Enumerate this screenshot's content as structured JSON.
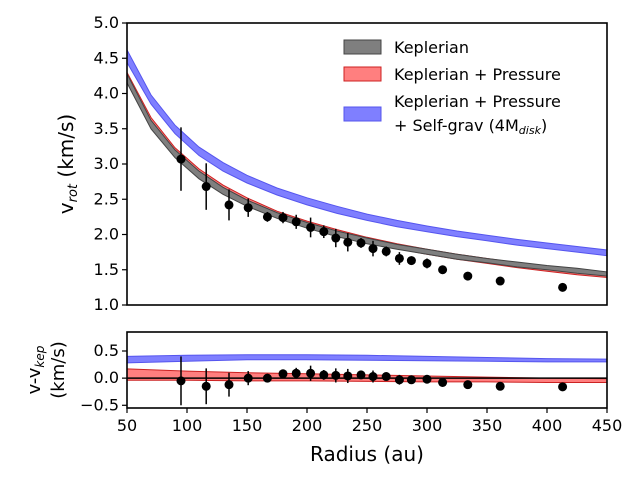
{
  "chart_data": [
    {
      "type": "area",
      "panel": "top",
      "ylabel": "v",
      "ylabel_sub": "rot",
      "ylabel_unit": " (km/s)",
      "ylim": [
        1.0,
        5.0
      ],
      "xlim": [
        50,
        450
      ],
      "yticks": [
        1.0,
        1.5,
        2.0,
        2.5,
        3.0,
        3.5,
        4.0,
        4.5,
        5.0
      ],
      "ytick_labels": [
        "1.0",
        "1.5",
        "2.0",
        "2.5",
        "3.0",
        "3.5",
        "4.0",
        "4.5",
        "5.0"
      ],
      "legend": [
        {
          "label": "Keplerian",
          "color": "#7f7f7f"
        },
        {
          "label": "Keplerian + Pressure",
          "color": "#ff7f7f"
        },
        {
          "label_line1": "Keplerian + Pressure",
          "label_line2": "+ Self-grav (4M",
          "label_sub": "disk",
          "label_end": ")",
          "color": "#7f7fff"
        }
      ],
      "x_model": [
        50,
        70,
        90,
        110,
        130,
        150,
        175,
        200,
        225,
        250,
        275,
        300,
        325,
        350,
        375,
        400,
        425,
        450
      ],
      "series": [
        {
          "name": "Keplerian + Pressure + Self-grav (4Mdisk)",
          "fill": "#7f7fff",
          "edge": "#5555ee",
          "lower": [
            4.44,
            3.85,
            3.43,
            3.12,
            2.9,
            2.73,
            2.56,
            2.42,
            2.3,
            2.2,
            2.11,
            2.04,
            1.97,
            1.91,
            1.85,
            1.8,
            1.75,
            1.7
          ],
          "upper": [
            4.62,
            3.98,
            3.55,
            3.24,
            3.02,
            2.84,
            2.66,
            2.52,
            2.4,
            2.29,
            2.2,
            2.12,
            2.05,
            1.99,
            1.93,
            1.88,
            1.83,
            1.78
          ]
        },
        {
          "name": "Keplerian + Pressure",
          "fill": "#ff7f7f",
          "edge": "#cc2222",
          "lower": [
            4.17,
            3.55,
            3.14,
            2.84,
            2.61,
            2.44,
            2.26,
            2.12,
            2.0,
            1.89,
            1.8,
            1.72,
            1.65,
            1.59,
            1.53,
            1.48,
            1.43,
            1.39
          ],
          "upper": [
            4.3,
            3.66,
            3.23,
            2.93,
            2.7,
            2.52,
            2.33,
            2.19,
            2.07,
            1.96,
            1.87,
            1.79,
            1.72,
            1.66,
            1.6,
            1.55,
            1.5,
            1.46
          ]
        },
        {
          "name": "Keplerian",
          "fill": "#7f7f7f",
          "edge": "#444444",
          "lower": [
            4.15,
            3.5,
            3.09,
            2.79,
            2.57,
            2.4,
            2.23,
            2.09,
            1.97,
            1.87,
            1.79,
            1.72,
            1.65,
            1.6,
            1.54,
            1.5,
            1.45,
            1.41
          ],
          "upper": [
            4.28,
            3.62,
            3.2,
            2.9,
            2.67,
            2.49,
            2.31,
            2.17,
            2.05,
            1.95,
            1.86,
            1.79,
            1.72,
            1.66,
            1.61,
            1.56,
            1.52,
            1.47
          ]
        }
      ],
      "points": [
        {
          "x": 95,
          "y": 3.07,
          "err": 0.45
        },
        {
          "x": 116,
          "y": 2.68,
          "err": 0.33
        },
        {
          "x": 135,
          "y": 2.42,
          "err": 0.22
        },
        {
          "x": 151,
          "y": 2.38,
          "err": 0.13
        },
        {
          "x": 167,
          "y": 2.25,
          "err": 0.07
        },
        {
          "x": 180,
          "y": 2.24,
          "err": 0.08
        },
        {
          "x": 191,
          "y": 2.18,
          "err": 0.1
        },
        {
          "x": 203,
          "y": 2.1,
          "err": 0.14
        },
        {
          "x": 214,
          "y": 2.04,
          "err": 0.09
        },
        {
          "x": 224,
          "y": 1.95,
          "err": 0.13
        },
        {
          "x": 234,
          "y": 1.89,
          "err": 0.13
        },
        {
          "x": 245,
          "y": 1.88,
          "err": 0.07
        },
        {
          "x": 255,
          "y": 1.8,
          "err": 0.11
        },
        {
          "x": 266,
          "y": 1.76,
          "err": 0.07
        },
        {
          "x": 277,
          "y": 1.66,
          "err": 0.09
        },
        {
          "x": 287,
          "y": 1.63,
          "err": 0.06
        },
        {
          "x": 300,
          "y": 1.59,
          "err": 0.07
        },
        {
          "x": 313,
          "y": 1.5,
          "err": 0.04
        },
        {
          "x": 334,
          "y": 1.41,
          "err": 0.03
        },
        {
          "x": 361,
          "y": 1.34,
          "err": 0.05
        },
        {
          "x": 413,
          "y": 1.25,
          "err": 0.03
        }
      ]
    },
    {
      "type": "area",
      "panel": "bottom",
      "ylabel_line1": "v-v",
      "ylabel_sub": "kep",
      "ylabel_line2": "(km/s)",
      "xlabel": "Radius (au)",
      "xlim": [
        50,
        450
      ],
      "ylim": [
        -0.55,
        0.85
      ],
      "xticks": [
        50,
        100,
        150,
        200,
        250,
        300,
        350,
        400,
        450
      ],
      "xtick_labels": [
        "50",
        "100",
        "150",
        "200",
        "250",
        "300",
        "350",
        "400",
        "450"
      ],
      "yticks": [
        -0.5,
        0.0,
        0.5
      ],
      "ytick_labels": [
        "−0.5",
        "0.0",
        "0.5"
      ],
      "zero_line": 0.0,
      "x_model": [
        50,
        100,
        150,
        200,
        250,
        300,
        350,
        400,
        450
      ],
      "series": [
        {
          "name": "Self-grav residual",
          "fill": "#7f7fff",
          "edge": "#5555ee",
          "lower": [
            0.28,
            0.31,
            0.34,
            0.34,
            0.33,
            0.32,
            0.31,
            0.3,
            0.3
          ],
          "upper": [
            0.4,
            0.42,
            0.43,
            0.43,
            0.42,
            0.4,
            0.38,
            0.36,
            0.35
          ]
        },
        {
          "name": "Pressure residual",
          "fill": "#ff7f7f",
          "edge": "#cc2222",
          "lower": [
            -0.04,
            -0.04,
            -0.05,
            -0.05,
            -0.06,
            -0.07,
            -0.07,
            -0.08,
            -0.08
          ],
          "upper": [
            0.17,
            0.13,
            0.1,
            0.08,
            0.06,
            0.04,
            0.02,
            0.0,
            -0.01
          ]
        }
      ],
      "points": [
        {
          "x": 95,
          "y": -0.05,
          "err": 0.45
        },
        {
          "x": 116,
          "y": -0.15,
          "err": 0.33
        },
        {
          "x": 135,
          "y": -0.12,
          "err": 0.22
        },
        {
          "x": 151,
          "y": 0.0,
          "err": 0.13
        },
        {
          "x": 167,
          "y": 0.0,
          "err": 0.07
        },
        {
          "x": 180,
          "y": 0.08,
          "err": 0.08
        },
        {
          "x": 191,
          "y": 0.09,
          "err": 0.1
        },
        {
          "x": 203,
          "y": 0.09,
          "err": 0.14
        },
        {
          "x": 214,
          "y": 0.06,
          "err": 0.09
        },
        {
          "x": 224,
          "y": 0.05,
          "err": 0.13
        },
        {
          "x": 234,
          "y": 0.04,
          "err": 0.13
        },
        {
          "x": 245,
          "y": 0.06,
          "err": 0.07
        },
        {
          "x": 255,
          "y": 0.03,
          "err": 0.11
        },
        {
          "x": 266,
          "y": 0.03,
          "err": 0.07
        },
        {
          "x": 277,
          "y": -0.03,
          "err": 0.09
        },
        {
          "x": 287,
          "y": -0.03,
          "err": 0.06
        },
        {
          "x": 300,
          "y": -0.02,
          "err": 0.07
        },
        {
          "x": 313,
          "y": -0.08,
          "err": 0.04
        },
        {
          "x": 334,
          "y": -0.12,
          "err": 0.03
        },
        {
          "x": 361,
          "y": -0.15,
          "err": 0.05
        },
        {
          "x": 413,
          "y": -0.16,
          "err": 0.03
        }
      ]
    }
  ]
}
